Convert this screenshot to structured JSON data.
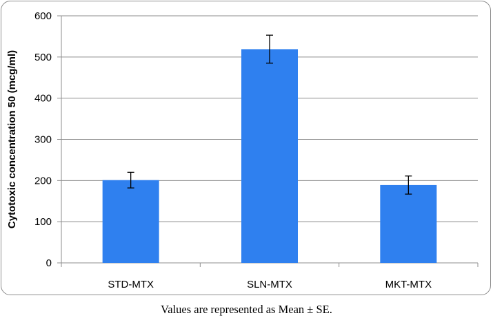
{
  "chart_data": {
    "type": "bar",
    "categories": [
      "STD-MTX",
      "SLN-MTX",
      "MKT-MTX"
    ],
    "values": [
      201,
      519,
      189
    ],
    "error_low": [
      182,
      485,
      167
    ],
    "error_high": [
      220,
      553,
      211
    ],
    "ylabel": "Cytotoxic concentration 50 (mcg/ml)",
    "xlabel": "",
    "ylim": [
      0,
      600
    ],
    "yticks": [
      0,
      100,
      200,
      300,
      400,
      500,
      600
    ],
    "grid": true,
    "bar_color": "#2f80ef",
    "grid_color": "#8c8c8c"
  },
  "footnote": "Values are represented as Mean ± SE."
}
